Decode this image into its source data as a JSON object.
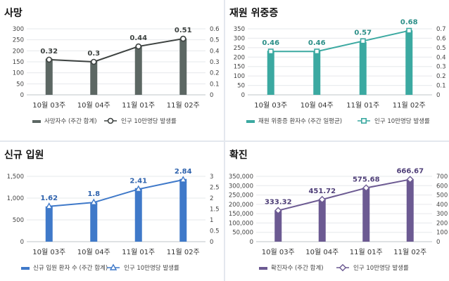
{
  "chart_data": [
    {
      "type": "bar",
      "title": "사망",
      "categories": [
        "10월 03주",
        "10월 04주",
        "11월 01주",
        "11월 02주"
      ],
      "series": [
        {
          "name": "사망자수 (주간 합계)",
          "values": [
            164,
            155,
            220,
            256
          ],
          "kind": "bar",
          "axis": "left"
        },
        {
          "name": "인구 10만명당 발생률",
          "values": [
            0.32,
            0.3,
            0.44,
            0.51
          ],
          "kind": "line",
          "axis": "right"
        }
      ],
      "ylim": [
        0,
        300
      ],
      "yticks": [
        "0",
        "50",
        "100",
        "150",
        "200",
        "250",
        "300"
      ],
      "y2lim": [
        0,
        0.6
      ],
      "y2ticks": [
        "0",
        "0.1",
        "0.2",
        "0.3",
        "0.4",
        "0.5",
        "0.6"
      ],
      "data_labels": [
        "0.32",
        "0.3",
        "0.44",
        "0.51"
      ],
      "bar_color": "#5c6763",
      "line_color": "#3d4240",
      "label_color": "#3d4240",
      "marker": "circle",
      "legend": "bottom"
    },
    {
      "type": "bar",
      "title": "재원 위중증",
      "categories": [
        "10월 03주",
        "10월 04주",
        "11월 01주",
        "11월 02주"
      ],
      "series": [
        {
          "name": "재원 위중증 환자수 (주간 일평균)",
          "values": [
            234,
            232,
            280,
            342
          ],
          "kind": "bar",
          "axis": "left"
        },
        {
          "name": "인구 10만명당 발생률",
          "values": [
            0.46,
            0.46,
            0.57,
            0.68
          ],
          "kind": "line",
          "axis": "right"
        }
      ],
      "ylim": [
        0,
        350
      ],
      "yticks": [
        "0",
        "50",
        "100",
        "150",
        "200",
        "250",
        "300",
        "350"
      ],
      "y2lim": [
        0,
        0.7
      ],
      "y2ticks": [
        "0",
        "0.1",
        "0.2",
        "0.3",
        "0.4",
        "0.5",
        "0.6",
        "0.7"
      ],
      "data_labels": [
        "0.46",
        "0.46",
        "0.57",
        "0.68"
      ],
      "bar_color": "#3ba9a1",
      "line_color": "#3ba9a1",
      "label_color": "#2c8f88",
      "marker": "square",
      "legend": "bottom"
    },
    {
      "type": "bar",
      "title": "신규 입원",
      "categories": [
        "10월 03주",
        "10월 04주",
        "11월 01주",
        "11월 02주"
      ],
      "series": [
        {
          "name": "신규 입원 환자 수 (주간 합계)",
          "values": [
            810,
            900,
            1230,
            1440
          ],
          "kind": "bar",
          "axis": "left"
        },
        {
          "name": "인구 10만명당 발생률",
          "values": [
            1.62,
            1.8,
            2.41,
            2.84
          ],
          "kind": "line",
          "axis": "right"
        }
      ],
      "ylim": [
        0,
        1500
      ],
      "yticks": [
        "0",
        "500",
        "1,000",
        "1,500"
      ],
      "y2lim": [
        0,
        3
      ],
      "y2ticks": [
        "0",
        "0.5",
        "1",
        "1.5",
        "2",
        "2.5",
        "3"
      ],
      "data_labels": [
        "1.62",
        "1.8",
        "2.41",
        "2.84"
      ],
      "bar_color": "#3f79c9",
      "line_color": "#3f79c9",
      "label_color": "#2f63ad",
      "marker": "triangle",
      "legend": "bottom"
    },
    {
      "type": "bar",
      "title": "확진",
      "categories": [
        "10월 03주",
        "10월 04주",
        "11월 01주",
        "11월 02주"
      ],
      "series": [
        {
          "name": "확진자수 (주간 합계)",
          "values": [
            166000,
            226000,
            288000,
            333000
          ],
          "kind": "bar",
          "axis": "left"
        },
        {
          "name": "인구 10만명당 발생률",
          "values": [
            333.32,
            451.72,
            575.68,
            666.67
          ],
          "kind": "line",
          "axis": "right"
        }
      ],
      "ylim": [
        0,
        350000
      ],
      "yticks": [
        "0",
        "50,000",
        "100,000",
        "150,000",
        "200,000",
        "250,000",
        "300,000",
        "350,000"
      ],
      "y2lim": [
        0,
        700
      ],
      "y2ticks": [
        "0",
        "100",
        "200",
        "300",
        "400",
        "500",
        "600",
        "700"
      ],
      "data_labels": [
        "333.32",
        "451.72",
        "575.68",
        "666.67"
      ],
      "bar_color": "#6c5a92",
      "line_color": "#6c5a92",
      "label_color": "#4f3f78",
      "marker": "diamond",
      "legend": "bottom"
    }
  ]
}
